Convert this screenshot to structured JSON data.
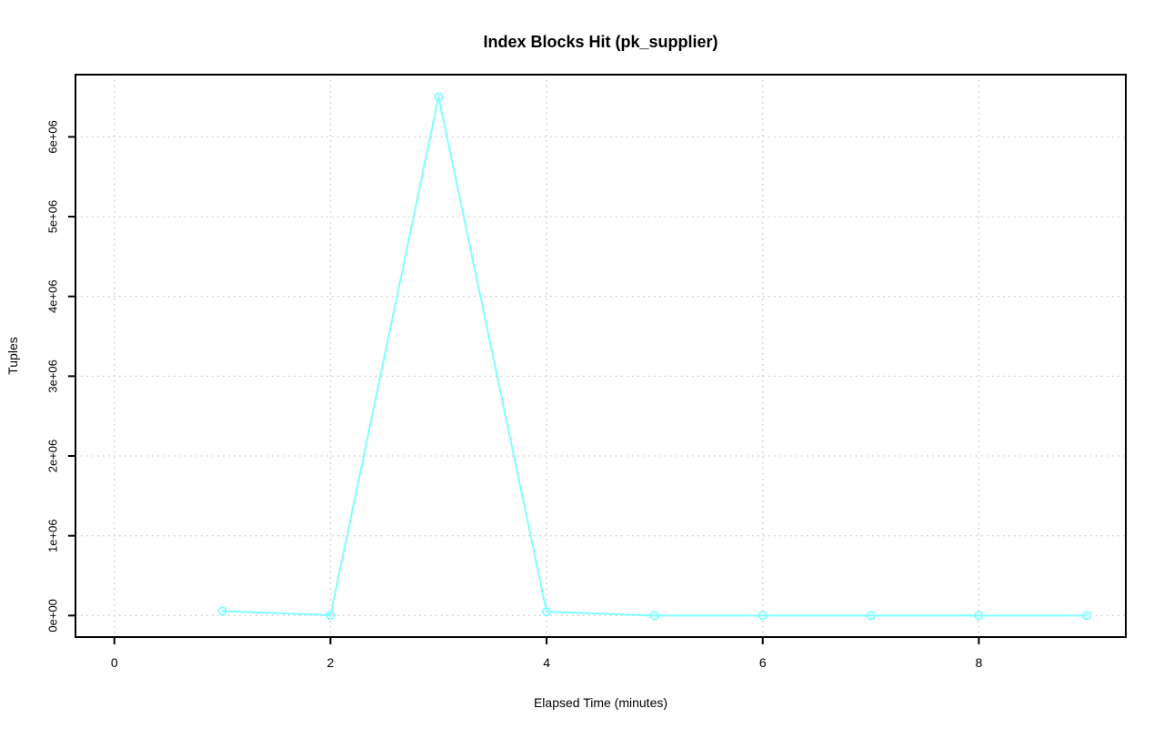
{
  "figure": {
    "background": "#ffffff"
  },
  "chart_data": {
    "type": "line",
    "title": "Index Blocks Hit (pk_supplier)",
    "xlabel": "Elapsed Time (minutes)",
    "ylabel": "Tuples",
    "x": [
      1,
      2,
      3,
      4,
      5,
      6,
      7,
      8,
      9
    ],
    "y": [
      55000,
      5000,
      6500000,
      48000,
      0,
      0,
      0,
      0,
      0
    ],
    "xticks": [
      0,
      2,
      4,
      6,
      8
    ],
    "yticks": [
      {
        "value": 0,
        "label": "0e+00"
      },
      {
        "value": 1000000,
        "label": "1e+06"
      },
      {
        "value": 2000000,
        "label": "2e+06"
      },
      {
        "value": 3000000,
        "label": "3e+06"
      },
      {
        "value": 4000000,
        "label": "4e+06"
      },
      {
        "value": 5000000,
        "label": "5e+06"
      },
      {
        "value": 6000000,
        "label": "6e+06"
      }
    ],
    "xlim": [
      -0.36,
      9.36
    ],
    "ylim": [
      -270000,
      6780000
    ],
    "grid": true,
    "grid_style": "dotted",
    "legend": null,
    "marker": "open-circle",
    "series_color": "#7fffff",
    "grid_color": "#c9c9c9",
    "axis_color": "#000000"
  }
}
